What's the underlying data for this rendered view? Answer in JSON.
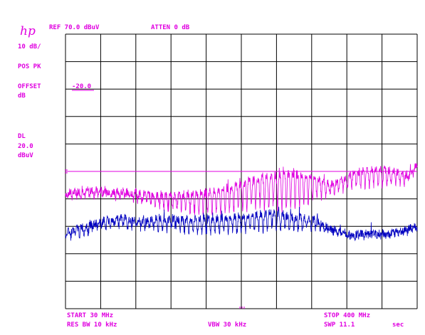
{
  "header": {
    "ref_level": "REF 70.0 dBuV",
    "attenuation": "ATTEN 0 dB"
  },
  "left_panel": {
    "logo": "hp",
    "scale": "10 dB/",
    "detector": "POS PK",
    "offset_label": "OFFSET",
    "offset_unit": "dB",
    "offset_value": "-20.0",
    "display_line_label": "DL",
    "display_line_value": "20.0",
    "display_line_unit": "dBuV"
  },
  "footer": {
    "start": "START 30 MHz",
    "stop": "STOP 400 MHz",
    "rbw": "RES BW 10 kHz",
    "vbw": "VBW 30 kHz",
    "sweep": "SWP 11.1",
    "sweep_unit": "sec"
  },
  "colors": {
    "grid": "#000000",
    "trace_a": "#e000e0",
    "trace_b": "#0000c0",
    "display_line": "#e000e0"
  },
  "chart_data": {
    "type": "line",
    "title": "",
    "xlabel": "",
    "ylabel": "",
    "x_unit": "MHz",
    "y_unit": "dBuV",
    "xlim": [
      30,
      400
    ],
    "ylim": [
      -30,
      70
    ],
    "grid": true,
    "display_line": 20.0,
    "series": [
      {
        "name": "",
        "color": "#e000e0",
        "x": [
          30,
          50,
          70,
          90,
          110,
          130,
          150,
          170,
          190,
          210,
          230,
          250,
          270,
          290,
          310,
          330,
          350,
          370,
          390,
          400
        ],
        "y": [
          12,
          13,
          13,
          12.5,
          12,
          11,
          11.5,
          12,
          13,
          15,
          17,
          18.5,
          19,
          18,
          15,
          19,
          21,
          20.5,
          19,
          22.5
        ],
        "dips": [
          2,
          2,
          2,
          2,
          3,
          4,
          6,
          7,
          8,
          9,
          10,
          12,
          13,
          9,
          3,
          5,
          6,
          6,
          3,
          2
        ]
      },
      {
        "name": "",
        "color": "#0000c0",
        "x": [
          30,
          50,
          70,
          90,
          110,
          130,
          150,
          170,
          190,
          210,
          230,
          250,
          270,
          290,
          310,
          330,
          350,
          370,
          390,
          400
        ],
        "y": [
          -2,
          0,
          2,
          3,
          2,
          3,
          2.5,
          2.5,
          3,
          3.5,
          4.5,
          5,
          3.5,
          2.5,
          -1,
          -3,
          -2.5,
          -2.5,
          -1,
          0
        ],
        "dips": [
          2,
          3,
          3,
          3,
          3,
          4,
          4,
          5,
          5,
          6,
          6,
          6,
          5,
          3,
          1,
          1,
          1,
          1,
          1,
          1
        ]
      }
    ]
  }
}
